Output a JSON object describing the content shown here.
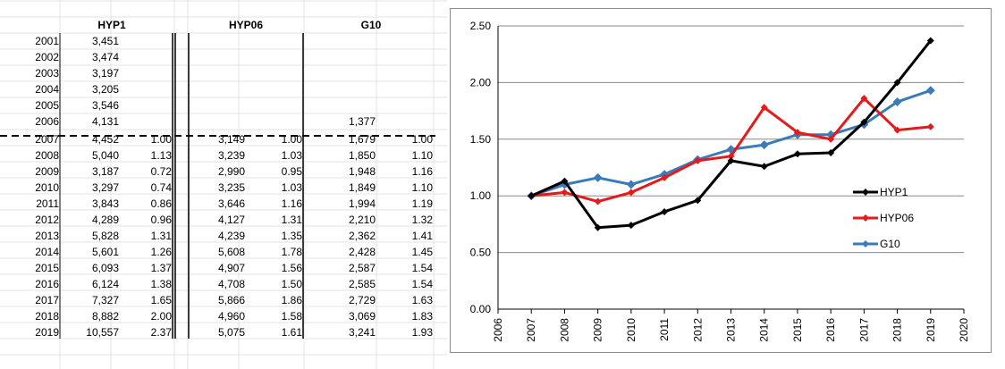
{
  "table": {
    "headers": [
      "HYP1",
      "HYP06",
      "G10"
    ],
    "rows": [
      {
        "year": "2001",
        "hyp1": "3,451",
        "hyp1_ratio": "",
        "hyp06": "",
        "hyp06_ratio": "",
        "g10": "",
        "g10_ratio": ""
      },
      {
        "year": "2002",
        "hyp1": "3,474",
        "hyp1_ratio": "",
        "hyp06": "",
        "hyp06_ratio": "",
        "g10": "",
        "g10_ratio": ""
      },
      {
        "year": "2003",
        "hyp1": "3,197",
        "hyp1_ratio": "",
        "hyp06": "",
        "hyp06_ratio": "",
        "g10": "",
        "g10_ratio": ""
      },
      {
        "year": "2004",
        "hyp1": "3,205",
        "hyp1_ratio": "",
        "hyp06": "",
        "hyp06_ratio": "",
        "g10": "",
        "g10_ratio": ""
      },
      {
        "year": "2005",
        "hyp1": "3,546",
        "hyp1_ratio": "",
        "hyp06": "",
        "hyp06_ratio": "",
        "g10": "",
        "g10_ratio": ""
      },
      {
        "year": "2006",
        "hyp1": "4,131",
        "hyp1_ratio": "",
        "hyp06": "",
        "hyp06_ratio": "",
        "g10": "1,377",
        "g10_ratio": ""
      },
      {
        "year": "2007",
        "hyp1": "4,452",
        "hyp1_ratio": "1.00",
        "hyp06": "3,149",
        "hyp06_ratio": "1.00",
        "g10": "1,679",
        "g10_ratio": "1.00"
      },
      {
        "year": "2008",
        "hyp1": "5,040",
        "hyp1_ratio": "1.13",
        "hyp06": "3,239",
        "hyp06_ratio": "1.03",
        "g10": "1,850",
        "g10_ratio": "1.10"
      },
      {
        "year": "2009",
        "hyp1": "3,187",
        "hyp1_ratio": "0.72",
        "hyp06": "2,990",
        "hyp06_ratio": "0.95",
        "g10": "1,948",
        "g10_ratio": "1.16"
      },
      {
        "year": "2010",
        "hyp1": "3,297",
        "hyp1_ratio": "0.74",
        "hyp06": "3,235",
        "hyp06_ratio": "1.03",
        "g10": "1,849",
        "g10_ratio": "1.10"
      },
      {
        "year": "2011",
        "hyp1": "3,843",
        "hyp1_ratio": "0.86",
        "hyp06": "3,646",
        "hyp06_ratio": "1.16",
        "g10": "1,994",
        "g10_ratio": "1.19"
      },
      {
        "year": "2012",
        "hyp1": "4,289",
        "hyp1_ratio": "0.96",
        "hyp06": "4,127",
        "hyp06_ratio": "1.31",
        "g10": "2,210",
        "g10_ratio": "1.32"
      },
      {
        "year": "2013",
        "hyp1": "5,828",
        "hyp1_ratio": "1.31",
        "hyp06": "4,239",
        "hyp06_ratio": "1.35",
        "g10": "2,362",
        "g10_ratio": "1.41"
      },
      {
        "year": "2014",
        "hyp1": "5,601",
        "hyp1_ratio": "1.26",
        "hyp06": "5,608",
        "hyp06_ratio": "1.78",
        "g10": "2,428",
        "g10_ratio": "1.45"
      },
      {
        "year": "2015",
        "hyp1": "6,093",
        "hyp1_ratio": "1.37",
        "hyp06": "4,907",
        "hyp06_ratio": "1.56",
        "g10": "2,587",
        "g10_ratio": "1.54"
      },
      {
        "year": "2016",
        "hyp1": "6,124",
        "hyp1_ratio": "1.38",
        "hyp06": "4,708",
        "hyp06_ratio": "1.50",
        "g10": "2,585",
        "g10_ratio": "1.54"
      },
      {
        "year": "2017",
        "hyp1": "7,327",
        "hyp1_ratio": "1.65",
        "hyp06": "5,866",
        "hyp06_ratio": "1.86",
        "g10": "2,729",
        "g10_ratio": "1.63"
      },
      {
        "year": "2018",
        "hyp1": "8,882",
        "hyp1_ratio": "2.00",
        "hyp06": "4,960",
        "hyp06_ratio": "1.58",
        "g10": "3,069",
        "g10_ratio": "1.83"
      },
      {
        "year": "2019",
        "hyp1": "10,557",
        "hyp1_ratio": "2.37",
        "hyp06": "5,075",
        "hyp06_ratio": "1.61",
        "g10": "3,241",
        "g10_ratio": "1.93"
      }
    ]
  },
  "chart_data": {
    "type": "line",
    "x": [
      2007,
      2008,
      2009,
      2010,
      2011,
      2012,
      2013,
      2014,
      2015,
      2016,
      2017,
      2018,
      2019
    ],
    "x_ticks": [
      "2006",
      "2007",
      "2008",
      "2009",
      "2010",
      "2011",
      "2012",
      "2013",
      "2014",
      "2015",
      "2016",
      "2017",
      "2018",
      "2019",
      "2020"
    ],
    "xlim": [
      2006,
      2020
    ],
    "ylim": [
      0,
      2.5
    ],
    "y_ticks": [
      "0.00",
      "0.50",
      "1.00",
      "1.50",
      "2.00",
      "2.50"
    ],
    "grid": "horizontal",
    "legend_position": "right",
    "series": [
      {
        "name": "HYP1",
        "color": "#000000",
        "values": [
          1.0,
          1.13,
          0.72,
          0.74,
          0.86,
          0.96,
          1.31,
          1.26,
          1.37,
          1.38,
          1.65,
          2.0,
          2.37
        ]
      },
      {
        "name": "HYP06",
        "color": "#e41a1c",
        "values": [
          1.0,
          1.03,
          0.95,
          1.03,
          1.16,
          1.31,
          1.35,
          1.78,
          1.56,
          1.5,
          1.86,
          1.58,
          1.61
        ]
      },
      {
        "name": "G10",
        "color": "#3a7bb8",
        "values": [
          1.0,
          1.1,
          1.16,
          1.1,
          1.19,
          1.32,
          1.41,
          1.45,
          1.54,
          1.54,
          1.63,
          1.83,
          1.93
        ]
      }
    ]
  }
}
